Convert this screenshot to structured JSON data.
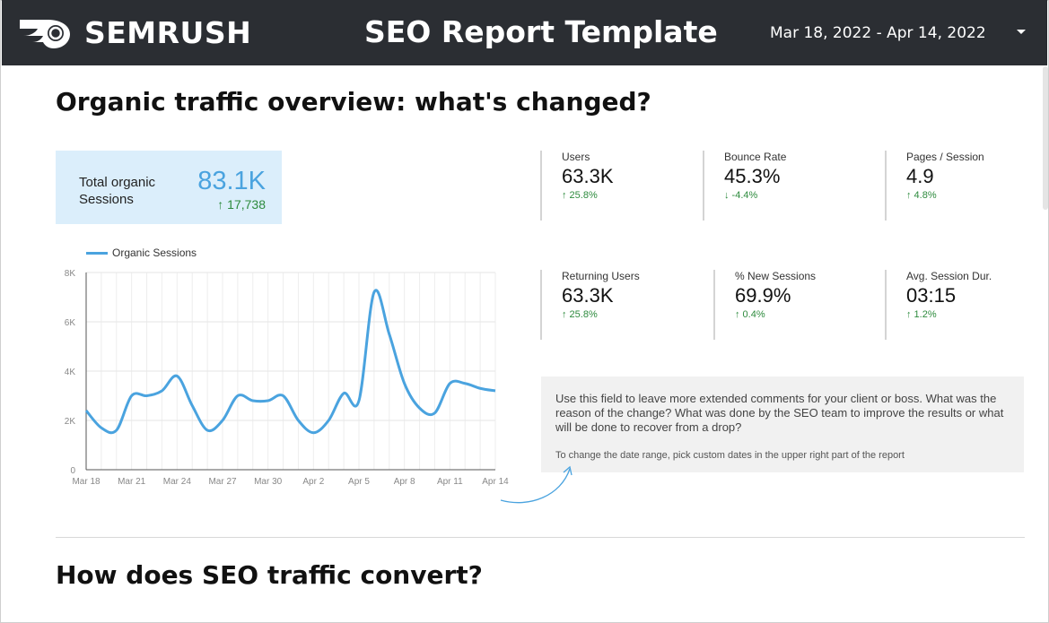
{
  "header": {
    "logo_text": "SEMRUSH",
    "title": "SEO Report Template",
    "date_range": "Mar 18, 2022 - Apr 14, 2022"
  },
  "section1": {
    "title": "Organic traffic overview: what's changed?"
  },
  "total": {
    "label": "Total organic Sessions",
    "value": "83.1K",
    "delta": "↑ 17,738"
  },
  "metrics": [
    {
      "label": "Users",
      "value": "63.3K",
      "delta": "↑ 25.8%"
    },
    {
      "label": "Bounce Rate",
      "value": "45.3%",
      "delta": "↓ -4.4%"
    },
    {
      "label": "Pages / Session",
      "value": "4.9",
      "delta": "↑ 4.8%"
    },
    {
      "label": "Returning Users",
      "value": "63.3K",
      "delta": "↑ 25.8%"
    },
    {
      "label": "% New Sessions",
      "value": "69.9%",
      "delta": "↑ 0.4%"
    },
    {
      "label": "Avg. Session Dur.",
      "value": "03:15",
      "delta": "↑ 1.2%"
    }
  ],
  "comment": {
    "text": "Use this field to leave more extended comments for your client or boss. What was the reason of the change? What was done by the SEO team to improve the results or what will be done to recover from a drop?",
    "hint": "To change the date range, pick custom dates in the upper right part of the report"
  },
  "section2": {
    "title": "How does SEO traffic convert?"
  },
  "colors": {
    "header_bg": "#2b2e33",
    "accent": "#4aa3df",
    "positive": "#2e8b3e"
  },
  "chart_data": {
    "type": "line",
    "title": "",
    "xlabel": "",
    "ylabel": "",
    "ylim": [
      0,
      8000
    ],
    "yticks": [
      0,
      2000,
      4000,
      6000,
      8000
    ],
    "ytick_labels": [
      "0",
      "2K",
      "4K",
      "6K",
      "8K"
    ],
    "x": [
      "Mar 18",
      "Mar 19",
      "Mar 20",
      "Mar 21",
      "Mar 22",
      "Mar 23",
      "Mar 24",
      "Mar 25",
      "Mar 26",
      "Mar 27",
      "Mar 28",
      "Mar 29",
      "Mar 30",
      "Mar 31",
      "Apr 1",
      "Apr 2",
      "Apr 3",
      "Apr 4",
      "Apr 5",
      "Apr 6",
      "Apr 7",
      "Apr 8",
      "Apr 9",
      "Apr 10",
      "Apr 11",
      "Apr 12",
      "Apr 13",
      "Apr 14"
    ],
    "xtick_labels": [
      "Mar 18",
      "Mar 21",
      "Mar 24",
      "Mar 27",
      "Mar 30",
      "Apr 2",
      "Apr 5",
      "Apr 8",
      "Apr 11",
      "Apr 14"
    ],
    "legend": "top-left",
    "series": [
      {
        "name": "Organic Sessions",
        "color": "#4aa3df",
        "values": [
          2400,
          1700,
          1600,
          3000,
          3000,
          3200,
          3800,
          2600,
          1600,
          2000,
          3000,
          2800,
          2800,
          3000,
          2000,
          1500,
          2000,
          3100,
          2800,
          7200,
          5500,
          3500,
          2500,
          2300,
          3500,
          3500,
          3300,
          3200
        ]
      }
    ]
  }
}
